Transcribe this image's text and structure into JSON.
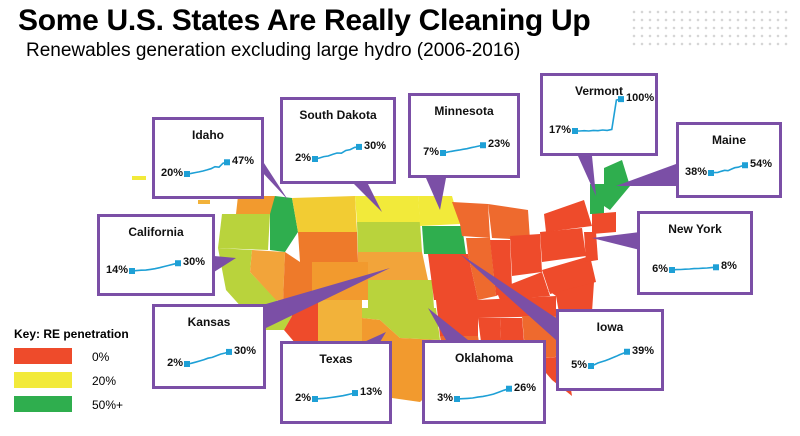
{
  "header": {
    "title": "Some U.S. States Are Really Cleaning Up",
    "subtitle": "Renewables generation excluding large hydro (2006-2016)"
  },
  "legend": {
    "title": "Key: RE penetration",
    "items": [
      {
        "label": "0%",
        "color": "#ee4b2b"
      },
      {
        "label": "20%",
        "color": "#f2ea3a"
      },
      {
        "label": "50%+",
        "color": "#2fae4e"
      }
    ]
  },
  "colors": {
    "accent": "#7b4fa6",
    "line": "#1ea0d6"
  },
  "chart_data": [
    {
      "type": "line",
      "title": "Idaho",
      "x": [
        2006,
        2016
      ],
      "series": [
        {
          "values": [
            20,
            47
          ]
        }
      ],
      "start_label": "20%",
      "end_label": "47%"
    },
    {
      "type": "line",
      "title": "South Dakota",
      "x": [
        2006,
        2016
      ],
      "series": [
        {
          "values": [
            2,
            30
          ]
        }
      ],
      "start_label": "2%",
      "end_label": "30%"
    },
    {
      "type": "line",
      "title": "Minnesota",
      "x": [
        2006,
        2016
      ],
      "series": [
        {
          "values": [
            7,
            23
          ]
        }
      ],
      "start_label": "7%",
      "end_label": "23%"
    },
    {
      "type": "line",
      "title": "Vermont",
      "x": [
        2006,
        2016
      ],
      "series": [
        {
          "values": [
            17,
            100
          ]
        }
      ],
      "start_label": "17%",
      "end_label": "100%"
    },
    {
      "type": "line",
      "title": "Maine",
      "x": [
        2006,
        2016
      ],
      "series": [
        {
          "values": [
            38,
            54
          ]
        }
      ],
      "start_label": "38%",
      "end_label": "54%"
    },
    {
      "type": "line",
      "title": "California",
      "x": [
        2006,
        2016
      ],
      "series": [
        {
          "values": [
            14,
            30
          ]
        }
      ],
      "start_label": "14%",
      "end_label": "30%"
    },
    {
      "type": "line",
      "title": "New York",
      "x": [
        2006,
        2016
      ],
      "series": [
        {
          "values": [
            6,
            8
          ]
        }
      ],
      "start_label": "6%",
      "end_label": "8%"
    },
    {
      "type": "line",
      "title": "Kansas",
      "x": [
        2006,
        2016
      ],
      "series": [
        {
          "values": [
            2,
            30
          ]
        }
      ],
      "start_label": "2%",
      "end_label": "30%"
    },
    {
      "type": "line",
      "title": "Texas",
      "x": [
        2006,
        2016
      ],
      "series": [
        {
          "values": [
            2,
            13
          ]
        }
      ],
      "start_label": "2%",
      "end_label": "13%"
    },
    {
      "type": "line",
      "title": "Oklahoma",
      "x": [
        2006,
        2016
      ],
      "series": [
        {
          "values": [
            3,
            26
          ]
        }
      ],
      "start_label": "3%",
      "end_label": "26%"
    },
    {
      "type": "line",
      "title": "Iowa",
      "x": [
        2006,
        2016
      ],
      "series": [
        {
          "values": [
            5,
            39
          ]
        }
      ],
      "start_label": "5%",
      "end_label": "39%"
    }
  ]
}
